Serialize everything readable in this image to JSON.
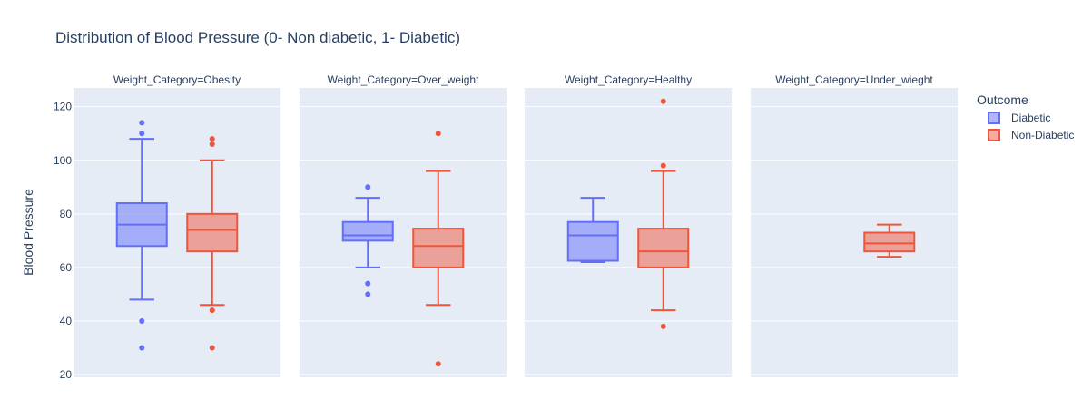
{
  "chart_data": {
    "type": "box",
    "title": "Distribution of Blood Pressure (0- Non diabetic, 1- Diabetic)",
    "ylabel": "Blood Pressure",
    "xlabel": "",
    "ylim": [
      19,
      127
    ],
    "yticks": [
      20,
      40,
      60,
      80,
      100,
      120
    ],
    "grid": true,
    "legend": {
      "title": "Outcome",
      "placement": "right",
      "entries": [
        {
          "name": "Diabetic",
          "color": "#636efa"
        },
        {
          "name": "Non-Diabetic",
          "color": "#ef553b"
        }
      ]
    },
    "panels": [
      {
        "label": "Weight_Category=Obesity",
        "boxes": [
          {
            "series": "Diabetic",
            "whisker_low": 48,
            "q1": 68,
            "median": 76,
            "q3": 84,
            "whisker_high": 108,
            "outliers": [
              114,
              110,
              40,
              30
            ]
          },
          {
            "series": "Non-Diabetic",
            "whisker_low": 46,
            "q1": 66,
            "median": 74,
            "q3": 80,
            "whisker_high": 100,
            "outliers": [
              108,
              106,
              44,
              30
            ]
          }
        ]
      },
      {
        "label": "Weight_Category=Over_weight",
        "boxes": [
          {
            "series": "Diabetic",
            "whisker_low": 60,
            "q1": 70,
            "median": 72,
            "q3": 77,
            "whisker_high": 86,
            "outliers": [
              90,
              54,
              50
            ]
          },
          {
            "series": "Non-Diabetic",
            "whisker_low": 46,
            "q1": 60,
            "median": 68,
            "q3": 74.5,
            "whisker_high": 96,
            "outliers": [
              110,
              24
            ]
          }
        ]
      },
      {
        "label": "Weight_Category=Healthy",
        "boxes": [
          {
            "series": "Diabetic",
            "whisker_low": 62,
            "q1": 62.5,
            "median": 72,
            "q3": 77,
            "whisker_high": 86,
            "outliers": []
          },
          {
            "series": "Non-Diabetic",
            "whisker_low": 44,
            "q1": 60,
            "median": 66,
            "q3": 74.5,
            "whisker_high": 96,
            "outliers": [
              122,
              98,
              38
            ]
          }
        ]
      },
      {
        "label": "Weight_Category=Under_wieght",
        "boxes": [
          {
            "series": "Non-Diabetic",
            "whisker_low": 64,
            "q1": 66,
            "median": 69,
            "q3": 73,
            "whisker_high": 76,
            "outliers": []
          }
        ]
      }
    ]
  }
}
